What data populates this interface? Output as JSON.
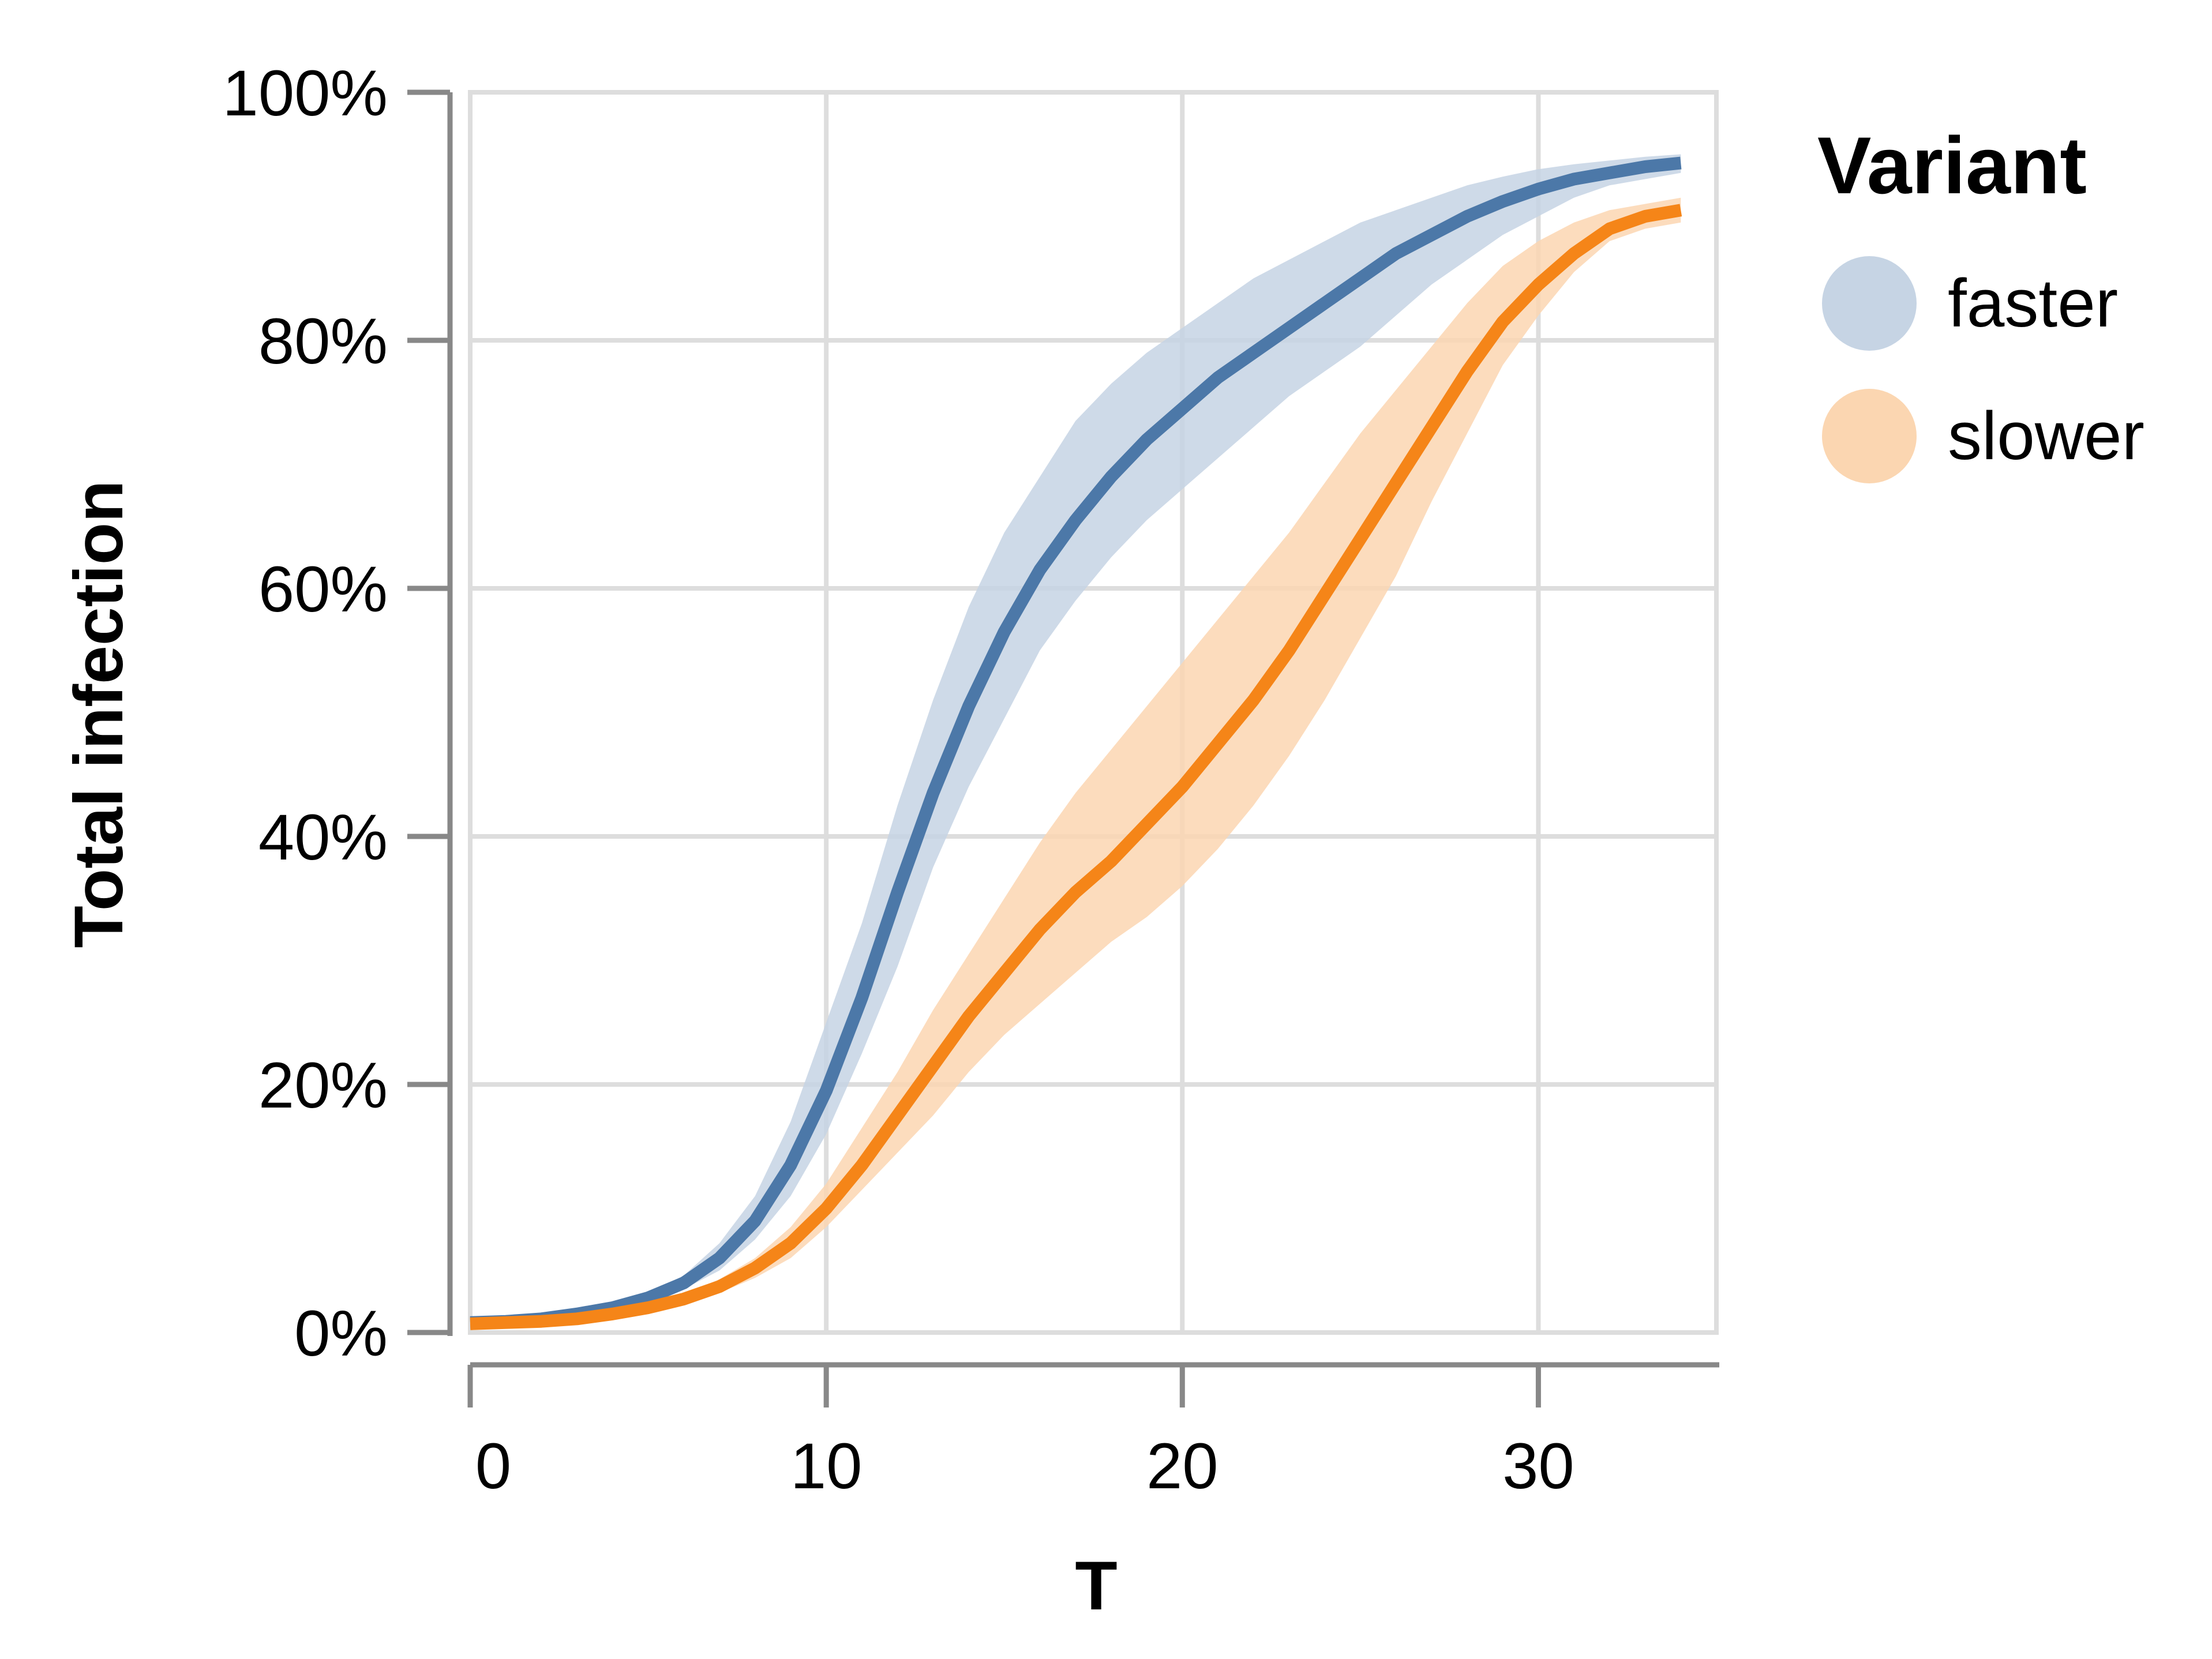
{
  "chart_data": {
    "type": "line",
    "title": "",
    "xlabel": "T",
    "ylabel": "Total infection",
    "xlim": [
      0,
      35
    ],
    "ylim": [
      0,
      100
    ],
    "x_ticks": [
      "0",
      "10",
      "20",
      "30"
    ],
    "y_ticks": [
      "0%",
      "20%",
      "40%",
      "60%",
      "80%",
      "100%"
    ],
    "grid": true,
    "legend": {
      "title": "Variant",
      "placement": "right",
      "entries": [
        "faster",
        "slower"
      ]
    },
    "x": [
      0,
      1,
      2,
      3,
      4,
      5,
      6,
      7,
      8,
      9,
      10,
      11,
      12,
      13,
      14,
      15,
      16,
      17,
      18,
      19,
      20,
      21,
      22,
      23,
      24,
      25,
      26,
      27,
      28,
      29,
      30,
      31,
      32,
      33,
      34
    ],
    "series": [
      {
        "name": "faster",
        "color": "#4c78a8",
        "band_color": "#c6d4e4",
        "values": [
          0.8,
          0.9,
          1.1,
          1.5,
          2.0,
          2.8,
          4.0,
          6.0,
          9.0,
          13.5,
          19.5,
          27,
          35.5,
          43.5,
          50.5,
          56.5,
          61.5,
          65.5,
          69,
          72,
          74.5,
          77,
          79,
          81,
          83,
          85,
          87,
          88.5,
          90,
          91.2,
          92.2,
          93,
          93.5,
          94,
          94.3
        ],
        "lower": [
          0.7,
          0.8,
          1.0,
          1.3,
          1.8,
          2.5,
          3.5,
          5.0,
          7.5,
          11.0,
          16.0,
          22.5,
          29.5,
          37.5,
          44.0,
          49.5,
          55.0,
          59.0,
          62.5,
          65.5,
          68.0,
          70.5,
          73.0,
          75.5,
          77.5,
          79.5,
          82.0,
          84.5,
          86.5,
          88.5,
          90.0,
          91.5,
          92.5,
          93.0,
          93.5
        ],
        "upper": [
          0.9,
          1.0,
          1.2,
          1.7,
          2.3,
          3.2,
          4.6,
          7.2,
          11.0,
          17.0,
          25.0,
          33.0,
          42.5,
          51.0,
          58.5,
          64.5,
          69.0,
          73.5,
          76.5,
          79.0,
          81.0,
          83.0,
          85.0,
          86.5,
          88.0,
          89.5,
          90.5,
          91.5,
          92.5,
          93.2,
          93.8,
          94.2,
          94.5,
          94.8,
          95.0
        ]
      },
      {
        "name": "slower",
        "color": "#f58518",
        "band_color": "#fbd6b1",
        "values": [
          0.7,
          0.8,
          0.9,
          1.1,
          1.5,
          2.0,
          2.7,
          3.7,
          5.2,
          7.2,
          10.0,
          13.5,
          17.5,
          21.5,
          25.5,
          29.0,
          32.5,
          35.5,
          38.0,
          41.0,
          44.0,
          47.5,
          51.0,
          55.0,
          59.5,
          64.0,
          68.5,
          73.0,
          77.5,
          81.5,
          84.5,
          87.0,
          89.0,
          90.0,
          90.5
        ],
        "lower": [
          0.6,
          0.7,
          0.8,
          1.0,
          1.3,
          1.7,
          2.3,
          3.2,
          4.4,
          6.0,
          8.5,
          11.5,
          14.5,
          17.5,
          21.0,
          24.0,
          26.5,
          29.0,
          31.5,
          33.5,
          36.0,
          39.0,
          42.5,
          46.5,
          51.0,
          56.0,
          61.0,
          67.0,
          72.5,
          78.0,
          82.0,
          85.5,
          88.0,
          89.0,
          89.5
        ],
        "upper": [
          0.8,
          0.9,
          1.0,
          1.3,
          1.7,
          2.3,
          3.1,
          4.3,
          6.0,
          8.5,
          12.0,
          16.5,
          21.0,
          26.0,
          30.5,
          35.0,
          39.5,
          43.5,
          47.0,
          50.5,
          54.0,
          57.5,
          61.0,
          64.5,
          68.5,
          72.5,
          76.0,
          79.5,
          83.0,
          86.0,
          88.0,
          89.5,
          90.5,
          91.0,
          91.5
        ]
      }
    ]
  }
}
